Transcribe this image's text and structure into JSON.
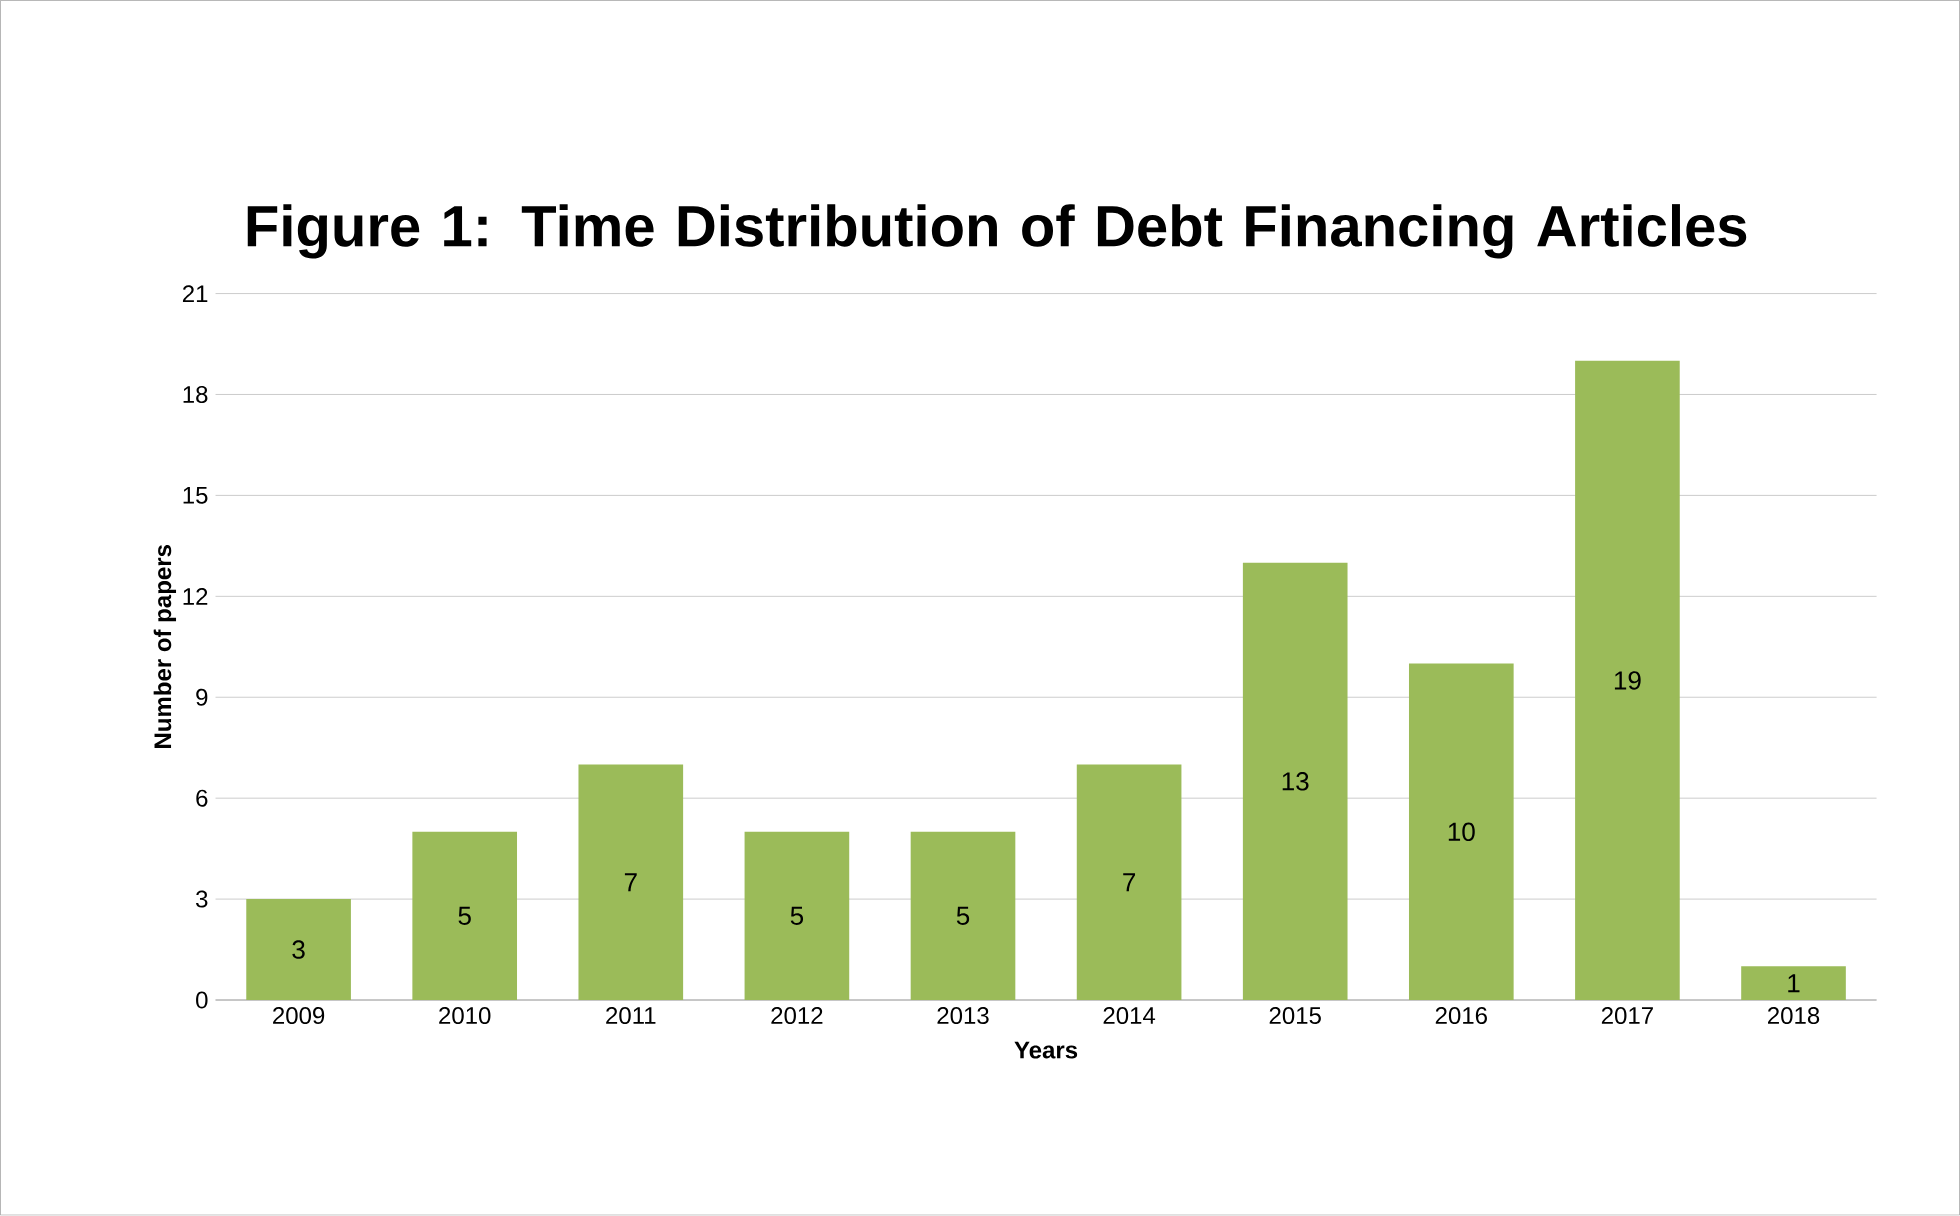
{
  "chart_data": {
    "type": "bar",
    "title": "Figure 1: Time Distribution of Debt Financing Articles",
    "xlabel": "Years",
    "ylabel": "Number of papers",
    "categories": [
      "2009",
      "2010",
      "2011",
      "2012",
      "2013",
      "2014",
      "2015",
      "2016",
      "2017",
      "2018"
    ],
    "values": [
      3,
      5,
      7,
      5,
      5,
      7,
      13,
      10,
      19,
      1
    ],
    "color": "#9bbb59",
    "ylim": [
      0,
      21
    ],
    "yticks": [
      0,
      3,
      6,
      9,
      12,
      15,
      18,
      21
    ],
    "grid": "y",
    "data_labels": true
  }
}
